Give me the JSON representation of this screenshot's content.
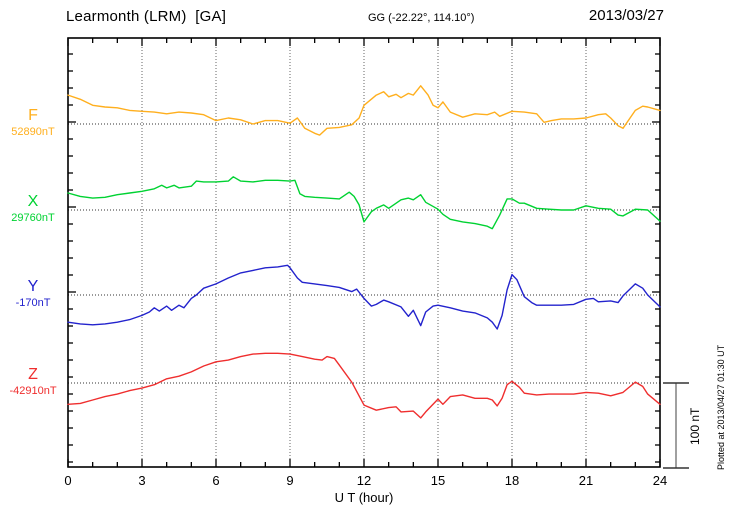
{
  "header": {
    "station": "Learmonth (LRM)  [GA]",
    "coords": "GG (-22.22°, 114.10°)",
    "date": "2013/03/27"
  },
  "footer": {
    "x_axis_label": "U T (hour)",
    "plotted_note": "Plotted at 2013/04/27 01:30 UT"
  },
  "scale_bar": {
    "label": "100 nT",
    "value_nT": 100
  },
  "chart_data": {
    "type": "line",
    "title": "Learmonth (LRM)  [GA]",
    "subtitle": "GG (-22.22°, 114.10°)",
    "date": "2013/03/27",
    "xlabel": "U T (hour)",
    "xlim": [
      0,
      24
    ],
    "x_tick_labels": [
      "0",
      "3",
      "6",
      "9",
      "12",
      "15",
      "18",
      "21",
      "24"
    ],
    "x_major_tick_hours": 3,
    "x_minor_tick_hours": 1,
    "grid": {
      "vertical_dotted_every_hours": 3,
      "horizontal_dotted_at_each_series_baseline": true
    },
    "legend_position": "left-of-each-trace",
    "y_scale": {
      "scale_bar_nT": 100,
      "minor_tick_nT": 20
    },
    "series": [
      {
        "name": "F",
        "baseline_label": "52890nT",
        "baseline_nT": 52890,
        "color": "#ffaf1e",
        "units": "nT offset from baseline",
        "points": [
          [
            0,
            34
          ],
          [
            0.5,
            29
          ],
          [
            1,
            22
          ],
          [
            1.5,
            20
          ],
          [
            2,
            19
          ],
          [
            2.5,
            16
          ],
          [
            3,
            15
          ],
          [
            3.5,
            14
          ],
          [
            4,
            12
          ],
          [
            4.5,
            14
          ],
          [
            5,
            13
          ],
          [
            5.5,
            11
          ],
          [
            6,
            4
          ],
          [
            6.5,
            7
          ],
          [
            7,
            5
          ],
          [
            7.5,
            0
          ],
          [
            8,
            4
          ],
          [
            8.5,
            4
          ],
          [
            9,
            1
          ],
          [
            9.3,
            7
          ],
          [
            9.6,
            -5
          ],
          [
            10,
            -11
          ],
          [
            10.2,
            -13
          ],
          [
            10.5,
            -5
          ],
          [
            11,
            -4
          ],
          [
            11.5,
            -1
          ],
          [
            11.8,
            7
          ],
          [
            12,
            22
          ],
          [
            12.5,
            34
          ],
          [
            12.8,
            38
          ],
          [
            13,
            32
          ],
          [
            13.3,
            35
          ],
          [
            13.5,
            31
          ],
          [
            13.8,
            36
          ],
          [
            14,
            34
          ],
          [
            14.3,
            45
          ],
          [
            14.6,
            34
          ],
          [
            14.8,
            22
          ],
          [
            15,
            19
          ],
          [
            15.2,
            26
          ],
          [
            15.5,
            14
          ],
          [
            16,
            8
          ],
          [
            16.5,
            12
          ],
          [
            17,
            11
          ],
          [
            17.3,
            14
          ],
          [
            17.5,
            9
          ],
          [
            18,
            15
          ],
          [
            18.5,
            14
          ],
          [
            19,
            12
          ],
          [
            19.3,
            2
          ],
          [
            19.6,
            4
          ],
          [
            20,
            6
          ],
          [
            20.5,
            6
          ],
          [
            21,
            7
          ],
          [
            21.5,
            11
          ],
          [
            21.8,
            12
          ],
          [
            22,
            7
          ],
          [
            22.3,
            -2
          ],
          [
            22.5,
            -5
          ],
          [
            23,
            16
          ],
          [
            23.3,
            21
          ],
          [
            23.5,
            20
          ],
          [
            24,
            16
          ]
        ]
      },
      {
        "name": "X",
        "baseline_label": "29760nT",
        "baseline_nT": 29760,
        "color": "#00d232",
        "units": "nT offset from baseline",
        "points": [
          [
            0,
            20
          ],
          [
            0.5,
            16
          ],
          [
            1,
            14
          ],
          [
            1.5,
            15
          ],
          [
            2,
            18
          ],
          [
            2.5,
            20
          ],
          [
            3,
            22
          ],
          [
            3.5,
            25
          ],
          [
            3.8,
            29
          ],
          [
            4,
            26
          ],
          [
            4.3,
            29
          ],
          [
            4.5,
            26
          ],
          [
            5,
            28
          ],
          [
            5.2,
            34
          ],
          [
            5.5,
            33
          ],
          [
            6,
            33
          ],
          [
            6.5,
            34
          ],
          [
            6.7,
            39
          ],
          [
            7,
            34
          ],
          [
            7.5,
            33
          ],
          [
            8,
            35
          ],
          [
            8.5,
            35
          ],
          [
            9,
            34
          ],
          [
            9.2,
            35
          ],
          [
            9.4,
            19
          ],
          [
            9.6,
            16
          ],
          [
            10,
            15
          ],
          [
            10.5,
            14
          ],
          [
            11,
            13
          ],
          [
            11.4,
            21
          ],
          [
            11.6,
            16
          ],
          [
            11.8,
            6
          ],
          [
            12,
            -14
          ],
          [
            12.3,
            -2
          ],
          [
            12.5,
            2
          ],
          [
            12.8,
            6
          ],
          [
            13,
            2
          ],
          [
            13.5,
            12
          ],
          [
            13.8,
            14
          ],
          [
            14,
            12
          ],
          [
            14.3,
            18
          ],
          [
            14.5,
            9
          ],
          [
            15,
            1
          ],
          [
            15.2,
            -5
          ],
          [
            15.5,
            -11
          ],
          [
            16,
            -14
          ],
          [
            16.5,
            -16
          ],
          [
            17,
            -19
          ],
          [
            17.2,
            -22
          ],
          [
            17.5,
            -6
          ],
          [
            17.8,
            13
          ],
          [
            18,
            13
          ],
          [
            18.3,
            8
          ],
          [
            18.5,
            8
          ],
          [
            19,
            2
          ],
          [
            19.5,
            1
          ],
          [
            20,
            0
          ],
          [
            20.5,
            0
          ],
          [
            21,
            5
          ],
          [
            21.5,
            2
          ],
          [
            22,
            1
          ],
          [
            22.3,
            -6
          ],
          [
            22.5,
            -7
          ],
          [
            23,
            1
          ],
          [
            23.5,
            0
          ],
          [
            24,
            -13
          ]
        ]
      },
      {
        "name": "Y",
        "baseline_label": "-170nT",
        "baseline_nT": -170,
        "color": "#2323cd",
        "units": "nT offset from baseline",
        "points": [
          [
            0,
            -32
          ],
          [
            0.5,
            -34
          ],
          [
            1,
            -35
          ],
          [
            1.5,
            -34
          ],
          [
            2,
            -32
          ],
          [
            2.5,
            -29
          ],
          [
            3,
            -24
          ],
          [
            3.3,
            -20
          ],
          [
            3.5,
            -15
          ],
          [
            3.7,
            -19
          ],
          [
            4,
            -13
          ],
          [
            4.2,
            -18
          ],
          [
            4.5,
            -12
          ],
          [
            4.7,
            -15
          ],
          [
            5,
            -4
          ],
          [
            5.2,
            0
          ],
          [
            5.5,
            8
          ],
          [
            6,
            13
          ],
          [
            6.5,
            20
          ],
          [
            7,
            26
          ],
          [
            7.5,
            29
          ],
          [
            8,
            32
          ],
          [
            8.5,
            33
          ],
          [
            8.9,
            35
          ],
          [
            9,
            32
          ],
          [
            9.3,
            20
          ],
          [
            9.5,
            15
          ],
          [
            10,
            13
          ],
          [
            10.5,
            11
          ],
          [
            11,
            9
          ],
          [
            11.5,
            4
          ],
          [
            11.7,
            7
          ],
          [
            12,
            -4
          ],
          [
            12.3,
            -13
          ],
          [
            12.5,
            -11
          ],
          [
            12.8,
            -6
          ],
          [
            13,
            -8
          ],
          [
            13.5,
            -14
          ],
          [
            13.8,
            -25
          ],
          [
            14,
            -18
          ],
          [
            14.3,
            -36
          ],
          [
            14.5,
            -20
          ],
          [
            14.8,
            -13
          ],
          [
            15,
            -12
          ],
          [
            15.5,
            -15
          ],
          [
            16,
            -19
          ],
          [
            16.5,
            -21
          ],
          [
            17,
            -27
          ],
          [
            17.2,
            -32
          ],
          [
            17.4,
            -40
          ],
          [
            17.6,
            -24
          ],
          [
            17.8,
            6
          ],
          [
            18,
            24
          ],
          [
            18.2,
            18
          ],
          [
            18.5,
            -2
          ],
          [
            18.8,
            -9
          ],
          [
            19,
            -12
          ],
          [
            19.5,
            -12
          ],
          [
            20,
            -12
          ],
          [
            20.5,
            -11
          ],
          [
            21,
            -5
          ],
          [
            21.3,
            -4
          ],
          [
            21.5,
            -8
          ],
          [
            22,
            -7
          ],
          [
            22.3,
            -9
          ],
          [
            22.5,
            -1
          ],
          [
            23,
            13
          ],
          [
            23.3,
            8
          ],
          [
            23.5,
            0
          ],
          [
            24,
            -14
          ]
        ]
      },
      {
        "name": "Z",
        "baseline_label": "-42910nT",
        "baseline_nT": -42910,
        "color": "#ef2e2e",
        "units": "nT offset from baseline",
        "points": [
          [
            0,
            -25
          ],
          [
            0.5,
            -24
          ],
          [
            1,
            -20
          ],
          [
            1.5,
            -16
          ],
          [
            2,
            -13
          ],
          [
            2.5,
            -9
          ],
          [
            3,
            -6
          ],
          [
            3.5,
            -2
          ],
          [
            4,
            5
          ],
          [
            4.5,
            8
          ],
          [
            5,
            13
          ],
          [
            5.5,
            20
          ],
          [
            6,
            25
          ],
          [
            6.5,
            27
          ],
          [
            7,
            31
          ],
          [
            7.5,
            34
          ],
          [
            8,
            35
          ],
          [
            8.5,
            35
          ],
          [
            9,
            34
          ],
          [
            9.5,
            31
          ],
          [
            10,
            28
          ],
          [
            10.3,
            27
          ],
          [
            10.5,
            31
          ],
          [
            10.8,
            29
          ],
          [
            11,
            21
          ],
          [
            11.5,
            1
          ],
          [
            12,
            -26
          ],
          [
            12.5,
            -32
          ],
          [
            13,
            -29
          ],
          [
            13.3,
            -28
          ],
          [
            13.5,
            -34
          ],
          [
            14,
            -33
          ],
          [
            14.3,
            -41
          ],
          [
            14.5,
            -34
          ],
          [
            15,
            -19
          ],
          [
            15.2,
            -25
          ],
          [
            15.5,
            -16
          ],
          [
            16,
            -14
          ],
          [
            16.5,
            -18
          ],
          [
            17,
            -18
          ],
          [
            17.2,
            -20
          ],
          [
            17.4,
            -27
          ],
          [
            17.6,
            -18
          ],
          [
            17.8,
            -2
          ],
          [
            18,
            2
          ],
          [
            18.3,
            -5
          ],
          [
            18.5,
            -12
          ],
          [
            19,
            -14
          ],
          [
            19.5,
            -13
          ],
          [
            20,
            -13
          ],
          [
            20.5,
            -13
          ],
          [
            21,
            -11
          ],
          [
            21.5,
            -12
          ],
          [
            22,
            -15
          ],
          [
            22.5,
            -11
          ],
          [
            23,
            1
          ],
          [
            23.3,
            -4
          ],
          [
            23.5,
            -13
          ],
          [
            24,
            -25
          ]
        ],
        "scale_bar_label": "100 nT"
      }
    ]
  }
}
